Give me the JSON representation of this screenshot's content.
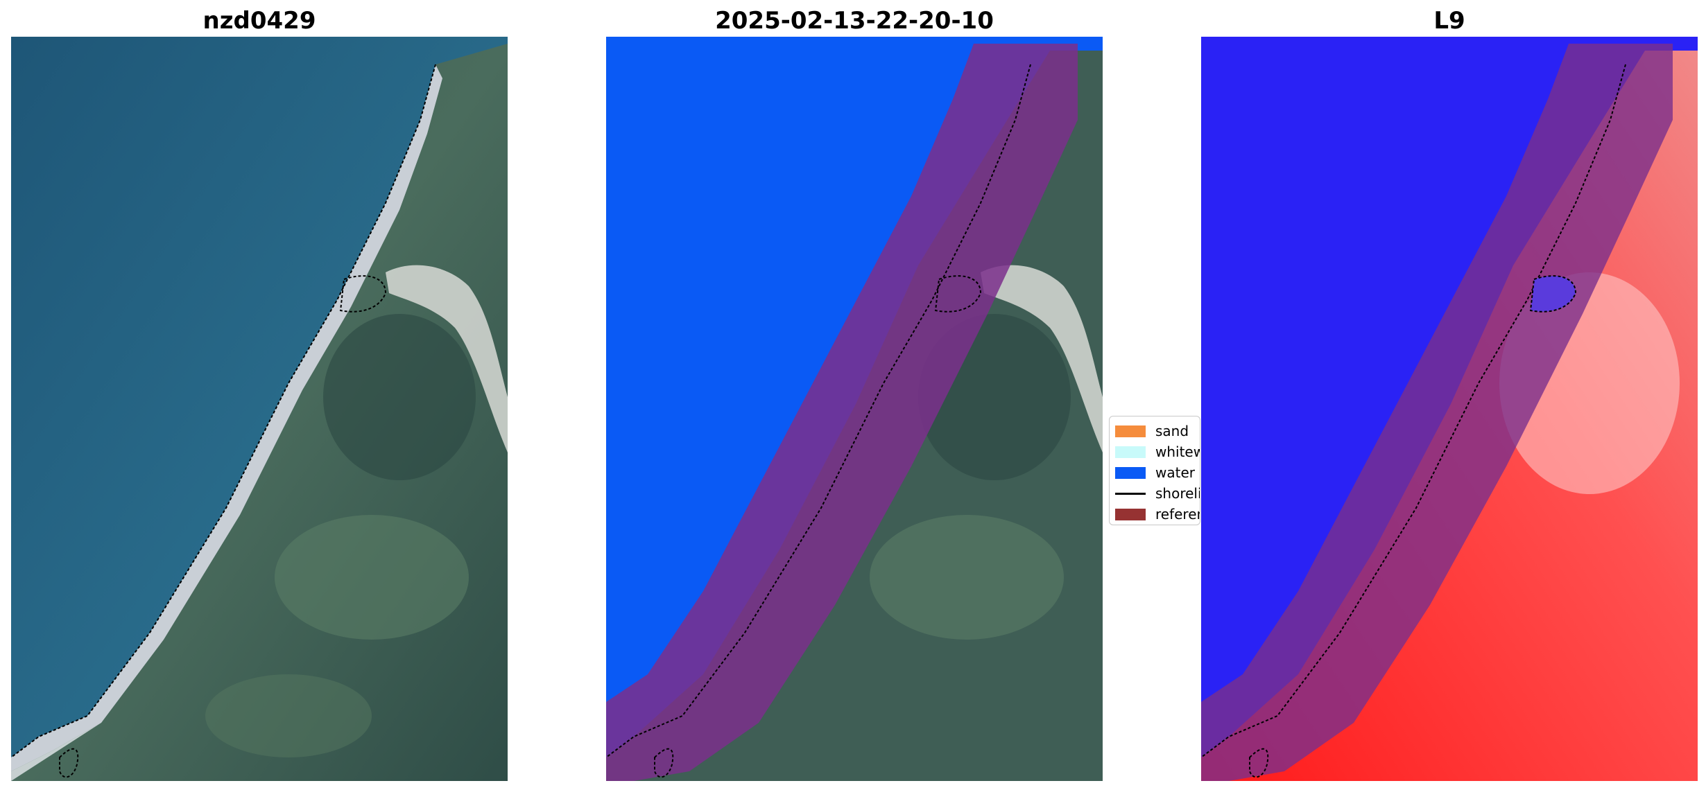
{
  "panels": [
    {
      "title": "nzd0429"
    },
    {
      "title": "2025-02-13-22-20-10"
    },
    {
      "title": "L9"
    }
  ],
  "legend": {
    "items": [
      {
        "label": "sand",
        "color": "#f58c3c"
      },
      {
        "label": "whitewater",
        "color": "#c8fafa"
      },
      {
        "label": "water",
        "color": "#0a5af5"
      },
      {
        "label": "shoreline",
        "color": "#000000"
      },
      {
        "label": "reference shoreline buffer",
        "color": "#963232"
      }
    ]
  },
  "colors": {
    "ocean": "#2a6b8a",
    "land": "#3f5e55",
    "beach": "#c9cfd6",
    "water_class": "#0a5af5",
    "buffer": "#7b2f8c",
    "index_water": "#2a22f5",
    "index_land": "#ff2a2a"
  }
}
